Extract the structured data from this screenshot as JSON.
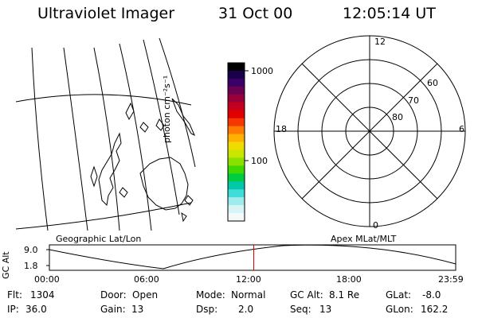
{
  "header": {
    "instrument": "Ultraviolet Imager",
    "date": "31 Oct 00",
    "time": "12:05:14 UT"
  },
  "geo_map": {
    "label": "Geographic Lat/Lon"
  },
  "colorbar": {
    "unit_label": "photon cm⁻²s⁻¹",
    "ticks": [
      1000,
      100
    ],
    "tick_labels": [
      "1000",
      "100"
    ],
    "colors": [
      "#000000",
      "#1a004a",
      "#3a0068",
      "#6a0050",
      "#98003a",
      "#c4001e",
      "#e00000",
      "#f43800",
      "#ff7a00",
      "#ffb000",
      "#f0dc00",
      "#c8e600",
      "#8ae000",
      "#40d800",
      "#00cc40",
      "#00c8a8",
      "#40dcd8",
      "#a0ecec",
      "#d8f4f4",
      "#f2fafa"
    ]
  },
  "polar_plot": {
    "label": "Apex MLat/MLT",
    "mlt_labels": {
      "top": "12",
      "left": "18",
      "right": "6",
      "bottom": "0"
    },
    "mlat_labels": [
      "60",
      "70",
      "80"
    ]
  },
  "altitude_plot": {
    "ylabel": "GC Alt",
    "y_ticks": [
      "9.0",
      "1.8"
    ],
    "x_ticks": [
      "00:00",
      "06:00",
      "12:00",
      "18:00",
      "23:59"
    ],
    "current_time_fraction": 0.503,
    "marker_color": "#e00000"
  },
  "status": {
    "row1": [
      {
        "label": "Flt:",
        "value": "1304"
      },
      {
        "label": "Door:",
        "value": "Open"
      },
      {
        "label": "Mode:",
        "value": "Normal"
      },
      {
        "label": "GC Alt:",
        "value": "8.1 Re"
      },
      {
        "label": "GLat:",
        "value": "-8.0"
      }
    ],
    "row2": [
      {
        "label": "IP:",
        "value": "36.0"
      },
      {
        "label": "Gain:",
        "value": "13"
      },
      {
        "label": "Dsp:",
        "value": "2.0"
      },
      {
        "label": "Seq:",
        "value": "13"
      },
      {
        "label": "GLon:",
        "value": "162.2"
      }
    ]
  }
}
